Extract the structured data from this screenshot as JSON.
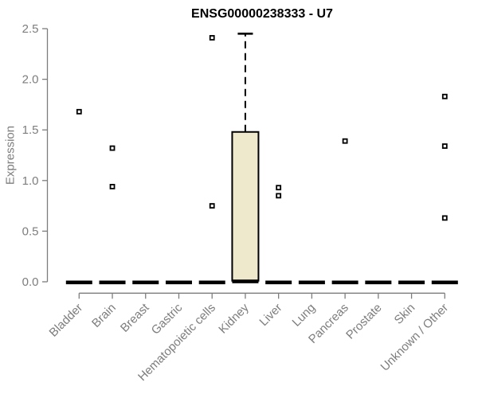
{
  "chart_data": {
    "type": "boxplot",
    "title": "ENSG00000238333 - U7",
    "xlabel": "",
    "ylabel": "Expression",
    "ylim": [
      0,
      2.5
    ],
    "ytick_values": [
      0,
      0.5,
      1.0,
      1.5,
      2.0,
      2.5
    ],
    "ytick_labels": [
      "0.0",
      "0.5",
      "1.0",
      "1.5",
      "2.0",
      "2.5"
    ],
    "grid": false,
    "legend_position": "none",
    "categories": [
      "Bladder",
      "Brain",
      "Breast",
      "Gastric",
      "Hematopoietic cells",
      "Kidney",
      "Liver",
      "Lung",
      "Pancreas",
      "Prostate",
      "Skin",
      "Unknown / Other"
    ],
    "boxes": [
      {
        "category": "Bladder",
        "q1": 0,
        "median": 0,
        "q3": 0,
        "whisker_low": 0,
        "whisker_high": 0,
        "outliers": [
          1.68
        ]
      },
      {
        "category": "Brain",
        "q1": 0,
        "median": 0,
        "q3": 0,
        "whisker_low": 0,
        "whisker_high": 0,
        "outliers": [
          1.32,
          0.94
        ]
      },
      {
        "category": "Breast",
        "q1": 0,
        "median": 0,
        "q3": 0,
        "whisker_low": 0,
        "whisker_high": 0,
        "outliers": []
      },
      {
        "category": "Gastric",
        "q1": 0,
        "median": 0,
        "q3": 0,
        "whisker_low": 0,
        "whisker_high": 0,
        "outliers": []
      },
      {
        "category": "Hematopoietic cells",
        "q1": 0,
        "median": 0,
        "q3": 0,
        "whisker_low": 0,
        "whisker_high": 0,
        "outliers": [
          2.41,
          0.75
        ]
      },
      {
        "category": "Kidney",
        "q1": 0.01,
        "median": 0.01,
        "q3": 1.48,
        "whisker_low": 0.01,
        "whisker_high": 2.45,
        "outliers": []
      },
      {
        "category": "Liver",
        "q1": 0,
        "median": 0,
        "q3": 0,
        "whisker_low": 0,
        "whisker_high": 0,
        "outliers": [
          0.93,
          0.85
        ]
      },
      {
        "category": "Lung",
        "q1": 0,
        "median": 0,
        "q3": 0,
        "whisker_low": 0,
        "whisker_high": 0,
        "outliers": []
      },
      {
        "category": "Pancreas",
        "q1": 0,
        "median": 0,
        "q3": 0,
        "whisker_low": 0,
        "whisker_high": 0,
        "outliers": [
          1.39
        ]
      },
      {
        "category": "Prostate",
        "q1": 0,
        "median": 0,
        "q3": 0,
        "whisker_low": 0,
        "whisker_high": 0,
        "outliers": []
      },
      {
        "category": "Skin",
        "q1": 0,
        "median": 0,
        "q3": 0,
        "whisker_low": 0,
        "whisker_high": 0,
        "outliers": []
      },
      {
        "category": "Unknown / Other",
        "q1": 0,
        "median": 0,
        "q3": 0,
        "whisker_low": 0,
        "whisker_high": 0,
        "outliers": [
          1.83,
          1.34,
          0.63
        ]
      }
    ],
    "colors": {
      "box_fill": "#EEE8CD",
      "box_stroke": "#000000",
      "median": "#000000",
      "whisker": "#000000",
      "outlier_stroke": "#000000",
      "outlier_fill": "#ffffff",
      "axis": "#7d7d7d",
      "tick_label": "#7d7d7d",
      "title": "#000000",
      "background": "#ffffff"
    }
  }
}
